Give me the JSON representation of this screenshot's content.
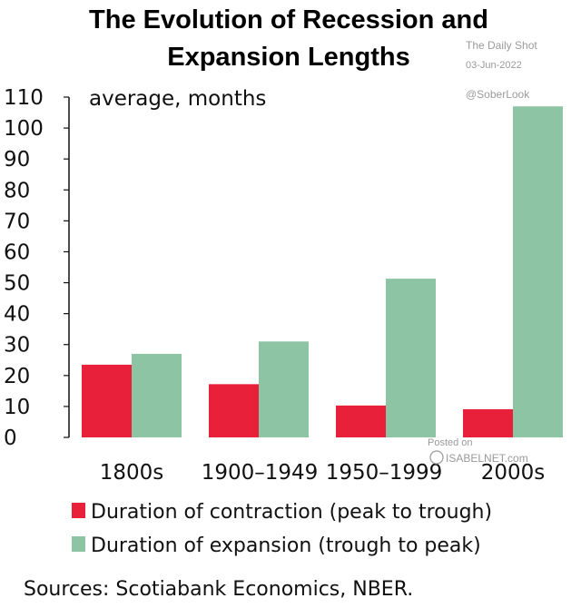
{
  "chart_data": {
    "type": "bar",
    "title": "The Evolution of Recession and Expansion Lengths",
    "title_lines": [
      "The Evolution of Recession and",
      "Expansion Lengths"
    ],
    "unit_label": "average, months",
    "categories": [
      "1800s",
      "1900–1949",
      "1950–1999",
      "2000s"
    ],
    "series": [
      {
        "name": "Duration of contraction (peak to trough)",
        "color": "#e8203a",
        "values": [
          23.5,
          17.2,
          10.3,
          9.1
        ]
      },
      {
        "name": "Duration of expansion (trough to peak)",
        "color": "#8cc4a4",
        "values": [
          27,
          31,
          51.3,
          107
        ]
      }
    ],
    "ylim": [
      0,
      110
    ],
    "yticks": [
      "0",
      "10",
      "20",
      "30",
      "40",
      "50",
      "60",
      "70",
      "80",
      "90",
      "100",
      "110"
    ],
    "grid": false,
    "legend_position": "bottom-left",
    "source": "Sources: Scotiabank Economics, NBER."
  },
  "watermarks": {
    "publisher": "The Daily Shot",
    "date": "03-Jun-2022",
    "handle": "@SoberLook",
    "posted_on": "Posted on",
    "site": "ISABELNET.com"
  }
}
